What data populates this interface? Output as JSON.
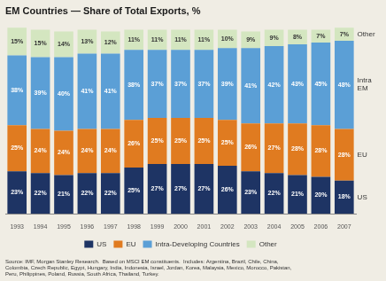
{
  "chart_data": {
    "type": "bar",
    "stacked": true,
    "title": "EM Countries — Share of Total Exports, %",
    "categories": [
      "1993",
      "1994",
      "1995",
      "1996",
      "1997",
      "1998",
      "1999",
      "2000",
      "2001",
      "2002",
      "2003",
      "2004",
      "2005",
      "2006",
      "2007"
    ],
    "series": [
      {
        "name": "US",
        "color": "#1e3464",
        "values": [
          23,
          22,
          21,
          22,
          22,
          25,
          27,
          27,
          27,
          26,
          23,
          22,
          21,
          20,
          18
        ],
        "value_labels": [
          "23%",
          "22%",
          "21%",
          "22%",
          "22%",
          "25%",
          "27%",
          "27%",
          "27%",
          "26%",
          "23%",
          "22%",
          "21%",
          "20%",
          "18%"
        ]
      },
      {
        "name": "EU",
        "color": "#e07b20",
        "values": [
          25,
          24,
          24,
          24,
          24,
          26,
          25,
          25,
          25,
          25,
          26,
          27,
          28,
          28,
          28
        ],
        "value_labels": [
          "25%",
          "24%",
          "24%",
          "24%",
          "24%",
          "26%",
          "25%",
          "25%",
          "25%",
          "25%",
          "26%",
          "27%",
          "28%",
          "28%",
          "28%"
        ]
      },
      {
        "name": "Intra-Developing Countries",
        "color": "#5b9fd6",
        "values": [
          38,
          39,
          40,
          41,
          41,
          38,
          37,
          37,
          37,
          39,
          41,
          42,
          43,
          45,
          48
        ],
        "value_labels": [
          "38%",
          "39%",
          "40%",
          "41%",
          "41%",
          "38%",
          "37%",
          "37%",
          "37%",
          "39%",
          "41%",
          "42%",
          "43%",
          "45%",
          "48%"
        ]
      },
      {
        "name": "Other",
        "color": "#d4e6c0",
        "values": [
          15,
          15,
          14,
          13,
          12,
          11,
          11,
          11,
          11,
          10,
          9,
          9,
          8,
          7,
          7
        ],
        "value_labels": [
          "15%",
          "15%",
          "14%",
          "13%",
          "12%",
          "11%",
          "11%",
          "11%",
          "11%",
          "10%",
          "9%",
          "9%",
          "8%",
          "7%",
          "7%"
        ]
      }
    ],
    "ylim": [
      0,
      103
    ],
    "tick_labels": "x",
    "grid": false,
    "legend": "bottom",
    "data_labels": true,
    "annotations": [
      {
        "text": "Other",
        "series": "Other"
      },
      {
        "text": "Intra\nEM",
        "series": "Intra-Developing Countries"
      },
      {
        "text": "EU",
        "series": "EU"
      },
      {
        "text": "US",
        "series": "US"
      },
      {
        "text": "Source: IMF, Morgan Stanley Research.  Based on MSCI EM constituents.  Includes: Argentina, Brazil, Chile, China,\nColombia, Czech Republic, Egypt, Hungary, India, Indonesia, Israel, Jordan, Korea, Malaysia, Mexico, Morocco, Pakistan,\nPeru, Philippines, Poland, Russia, South Africa, Thailand, Turkey."
      }
    ]
  }
}
